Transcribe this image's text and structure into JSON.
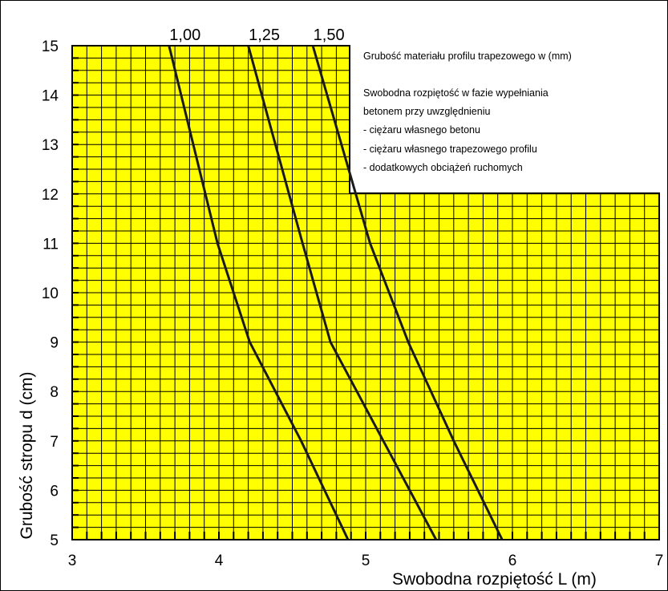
{
  "chart_data": {
    "type": "line",
    "xlabel": "Swobodna rozpiętość  L (m)",
    "ylabel": "Grubość stropu d (cm)",
    "xlim": [
      3,
      7
    ],
    "ylim": [
      5,
      15
    ],
    "x_ticks": [
      "3",
      "4",
      "5",
      "6",
      "7"
    ],
    "y_ticks": [
      "5",
      "6",
      "7",
      "8",
      "9",
      "10",
      "11",
      "12",
      "13",
      "14",
      "15"
    ],
    "grid": true,
    "background_color": "#ffff00",
    "line_color": "#1a1a1a",
    "series": [
      {
        "name": "1,00",
        "x": [
          4.88,
          4.56,
          4.21,
          3.99,
          3.66
        ],
        "y": [
          5,
          7,
          9,
          11,
          15
        ]
      },
      {
        "name": "1,25",
        "x": [
          5.48,
          5.12,
          4.76,
          4.57,
          4.2
        ],
        "y": [
          5,
          7,
          9,
          11,
          15
        ]
      },
      {
        "name": "1,50",
        "x": [
          5.93,
          5.6,
          5.29,
          5.03,
          4.64
        ],
        "y": [
          5,
          7,
          9,
          11,
          15
        ]
      }
    ],
    "legend_title": "Grubość materiału profilu trapezowego w (mm)",
    "notes": [
      "Swobodna rozpiętość w fazie wypełniania",
      "betonem przy uwzględnieniu",
      "- ciężaru własnego betonu",
      "- ciężaru własnego trapezowego profilu",
      "- dodatkowych obciążeń ruchomych"
    ]
  }
}
